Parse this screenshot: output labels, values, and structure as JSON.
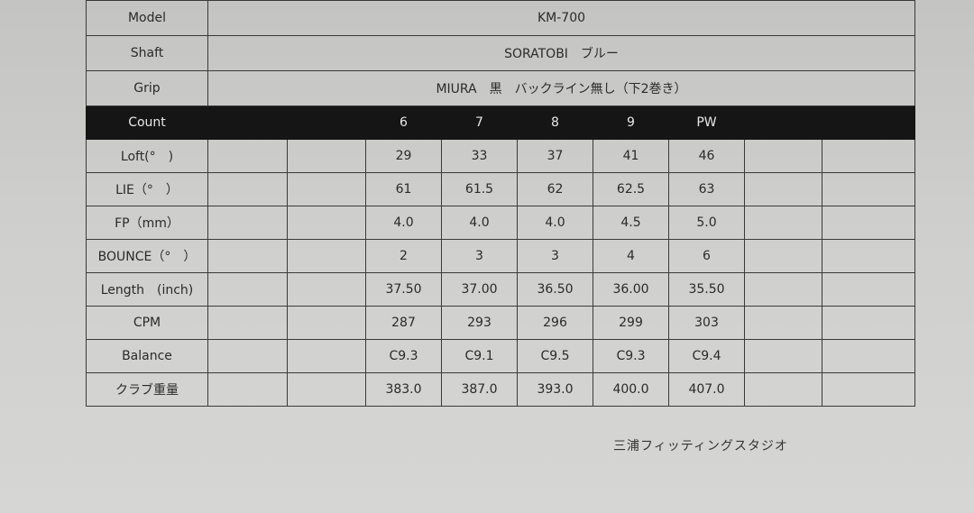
{
  "info": [
    {
      "label": "Model",
      "value": "KM-700"
    },
    {
      "label": "Shaft",
      "value": "SORATOBI　ブルー"
    },
    {
      "label": "Grip",
      "value": "MIURA　黒　バックライン無し（下2巻き）"
    }
  ],
  "header": {
    "label": "Count",
    "clubs": [
      "6",
      "7",
      "8",
      "9",
      "PW"
    ]
  },
  "rows": [
    {
      "label": "Loft(°　)",
      "values": [
        "29",
        "33",
        "37",
        "41",
        "46"
      ]
    },
    {
      "label": "LIE（°　）",
      "values": [
        "61",
        "61.5",
        "62",
        "62.5",
        "63"
      ]
    },
    {
      "label": "FP（mm）",
      "values": [
        "4.0",
        "4.0",
        "4.0",
        "4.5",
        "5.0"
      ]
    },
    {
      "label": "BOUNCE（°　）",
      "values": [
        "2",
        "3",
        "3",
        "4",
        "6"
      ]
    },
    {
      "label": "Length　(inch)",
      "values": [
        "37.50",
        "37.00",
        "36.50",
        "36.00",
        "35.50"
      ]
    },
    {
      "label": "CPM",
      "values": [
        "287",
        "293",
        "296",
        "299",
        "303"
      ]
    },
    {
      "label": "Balance",
      "values": [
        "C9.3",
        "C9.1",
        "C9.5",
        "C9.3",
        "C9.4"
      ]
    },
    {
      "label": "クラブ重量",
      "values": [
        "383.0",
        "387.0",
        "393.0",
        "400.0",
        "407.0"
      ]
    }
  ],
  "footer": "三浦フィッティングスタジオ"
}
